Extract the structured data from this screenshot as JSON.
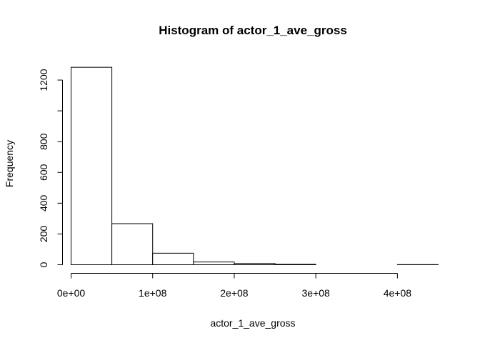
{
  "chart_data": {
    "type": "bar",
    "title": "Histogram of actor_1_ave_gross",
    "xlabel": "actor_1_ave_gross",
    "ylabel": "Frequency",
    "bins": [
      {
        "start": 0,
        "end": 50000000,
        "count": 1283
      },
      {
        "start": 50000000,
        "end": 100000000,
        "count": 267
      },
      {
        "start": 100000000,
        "end": 150000000,
        "count": 75
      },
      {
        "start": 150000000,
        "end": 200000000,
        "count": 18
      },
      {
        "start": 200000000,
        "end": 250000000,
        "count": 8
      },
      {
        "start": 250000000,
        "end": 300000000,
        "count": 3
      },
      {
        "start": 300000000,
        "end": 350000000,
        "count": 0
      },
      {
        "start": 350000000,
        "end": 400000000,
        "count": 0
      },
      {
        "start": 400000000,
        "end": 450000000,
        "count": 1
      }
    ],
    "xlim": [
      0,
      450000000
    ],
    "ylim": [
      0,
      1300
    ],
    "x_ticks": [
      {
        "value": 0,
        "label": "0e+00"
      },
      {
        "value": 100000000,
        "label": "1e+08"
      },
      {
        "value": 200000000,
        "label": "2e+08"
      },
      {
        "value": 300000000,
        "label": "3e+08"
      },
      {
        "value": 400000000,
        "label": "4e+08"
      }
    ],
    "y_ticks": [
      {
        "value": 0,
        "label": "0"
      },
      {
        "value": 200,
        "label": "200"
      },
      {
        "value": 400,
        "label": "400"
      },
      {
        "value": 600,
        "label": "600"
      },
      {
        "value": 800,
        "label": "800"
      },
      {
        "value": 1000,
        "label": ""
      },
      {
        "value": 1200,
        "label": "1200"
      }
    ],
    "grid": false,
    "bar_fill": "#ffffff",
    "bar_stroke": "#000000"
  }
}
